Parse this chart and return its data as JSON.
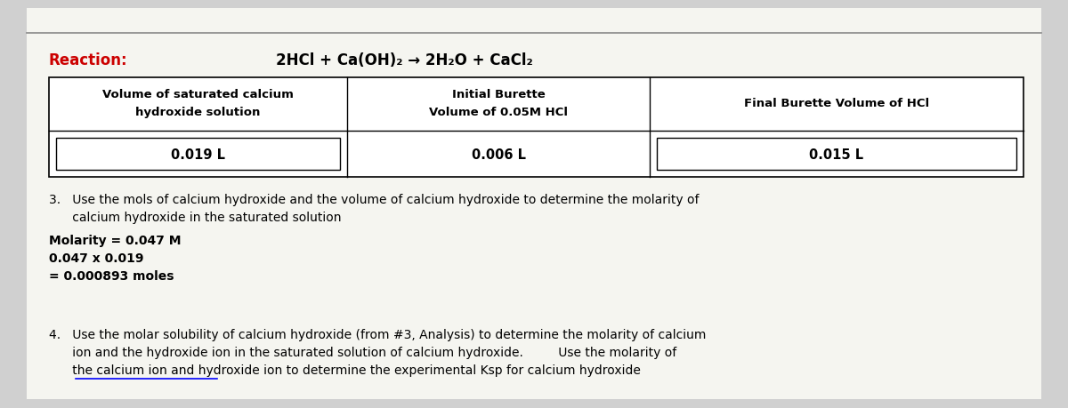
{
  "bg_color": "#d0d0d0",
  "paper_color": "#f5f5f0",
  "reaction_label": "Reaction:",
  "reaction_label_color": "#cc0000",
  "reaction_formula": "2HCl + Ca(OH)₂ → 2H₂O + CaCl₂",
  "col1_header_line1": "Volume of saturated calcium",
  "col1_header_line2": "hydroxide solution",
  "col2_header_line1": "Initial Burette",
  "col2_header_line2": "Volume of 0.05M HCl",
  "col3_header_line1": "Final Burette Volume of HCl",
  "col3_header_line2": "",
  "col1_value": "0.019 L",
  "col2_value": "0.006 L",
  "col3_value": "0.015 L",
  "step3_text1": "3.   Use the mols of calcium hydroxide and the volume of calcium hydroxide to determine the molarity of",
  "step3_text2": "      calcium hydroxide in the saturated solution",
  "step3_line1": "Molarity = 0.047 M",
  "step3_line2": "0.047 x 0.019",
  "step3_line3": "= 0.000893 moles",
  "step4_text1": "4.   Use the molar solubility of calcium hydroxide (from #3, Analysis) to determine the molarity of calcium",
  "step4_text2": "      ion and the hydroxide ion in the saturated solution of calcium hydroxide.         Use the molarity of",
  "step4_text3": "      the calcium ion and hydroxide ion to determine the experimental Ksp for calcium hydroxide",
  "font_size_header": 9.5,
  "font_size_body": 9.5,
  "font_size_reaction": 12,
  "font_size_reaction_label": 12
}
